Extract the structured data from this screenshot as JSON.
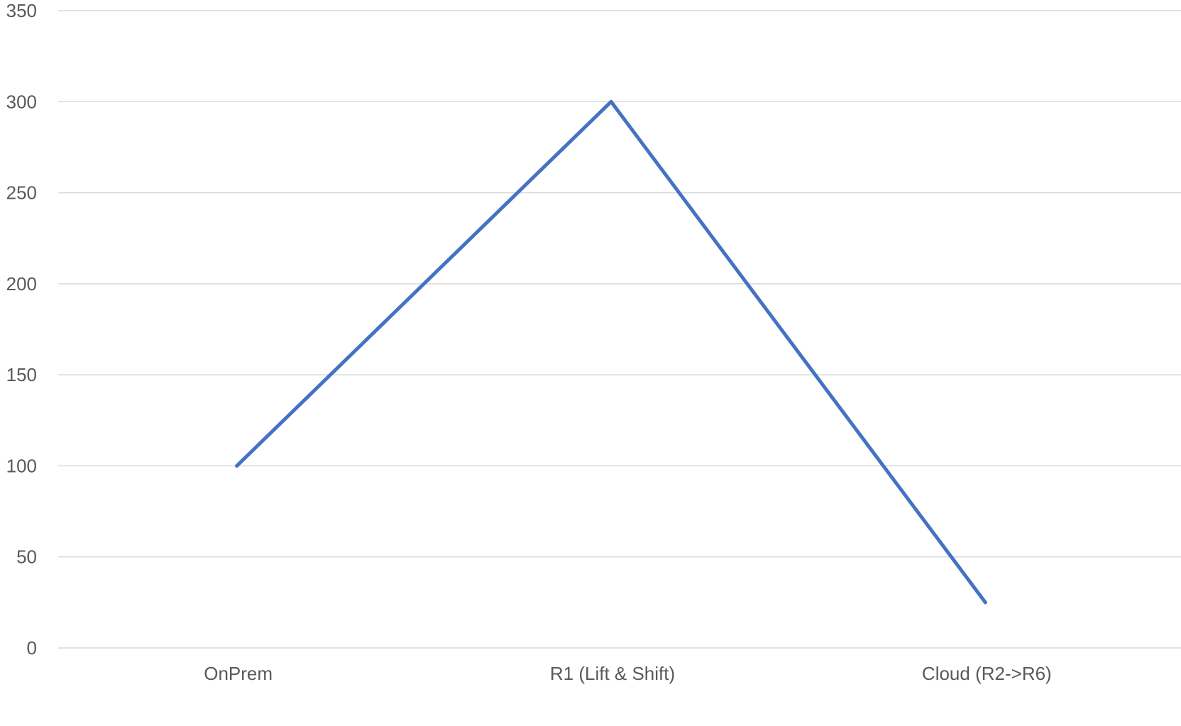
{
  "chart_data": {
    "type": "line",
    "categories": [
      "OnPrem",
      "R1 (Lift & Shift)",
      "Cloud (R2->R6)"
    ],
    "series": [
      {
        "values": [
          100,
          300,
          25
        ]
      }
    ],
    "y_ticks": [
      "0",
      "50",
      "100",
      "150",
      "200",
      "250",
      "300",
      "350"
    ],
    "ylim": [
      0,
      350
    ],
    "grid": true,
    "legend": "none",
    "line_color": "#4472c4",
    "grid_color": "#d9d9d9",
    "text_color": "#595959"
  }
}
